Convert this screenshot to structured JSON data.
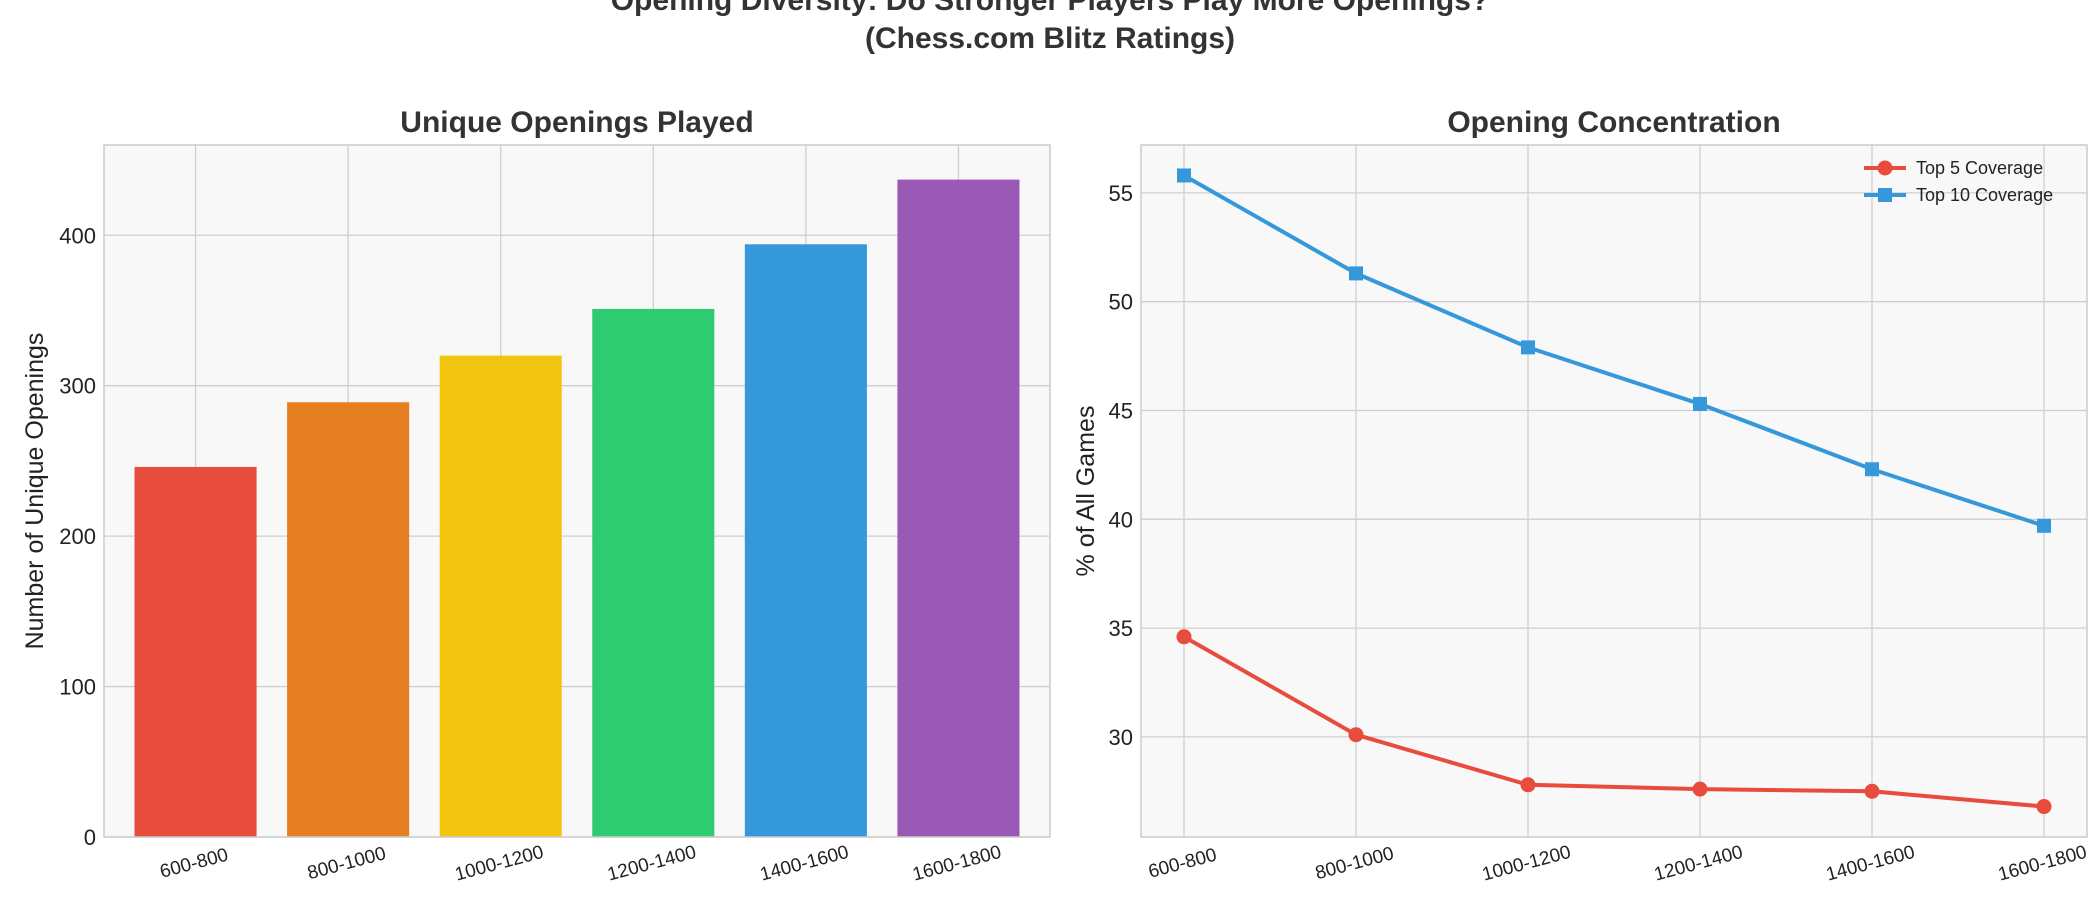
{
  "figure": {
    "title_line1": "Opening Diversity: Do Stronger Players Play More Openings?",
    "title_line2": "(Chess.com Blitz Ratings)"
  },
  "chart_data": [
    {
      "type": "bar",
      "title": "Unique Openings Played",
      "xlabel": "",
      "ylabel": "Number of Unique Openings",
      "categories": [
        "600-800",
        "800-1000",
        "1000-1200",
        "1200-1400",
        "1400-1600",
        "1600-1800"
      ],
      "values": [
        246,
        289,
        320,
        351,
        394,
        437
      ],
      "colors": [
        "#e74c3c",
        "#e67e22",
        "#f1c40f",
        "#2ecc71",
        "#3498db",
        "#9b59b6"
      ],
      "ylim": [
        0,
        460
      ],
      "yticks": [
        0,
        100,
        200,
        300,
        400
      ],
      "grid": true
    },
    {
      "type": "line",
      "title": "Opening Concentration",
      "xlabel": "",
      "ylabel": "% of All Games",
      "categories": [
        "600-800",
        "800-1000",
        "1000-1200",
        "1200-1400",
        "1400-1600",
        "1600-1800"
      ],
      "series": [
        {
          "name": "Top 5 Coverage",
          "values": [
            34.6,
            30.1,
            27.8,
            27.6,
            27.5,
            26.8
          ],
          "color": "#e74c3c",
          "marker": "circle"
        },
        {
          "name": "Top 10 Coverage",
          "values": [
            55.8,
            51.3,
            47.9,
            45.3,
            42.3,
            39.7
          ],
          "color": "#3498db",
          "marker": "square"
        }
      ],
      "ylim": [
        25.4,
        57.2
      ],
      "yticks": [
        30,
        35,
        40,
        45,
        50,
        55
      ],
      "legend": "top-right",
      "grid": true
    }
  ]
}
